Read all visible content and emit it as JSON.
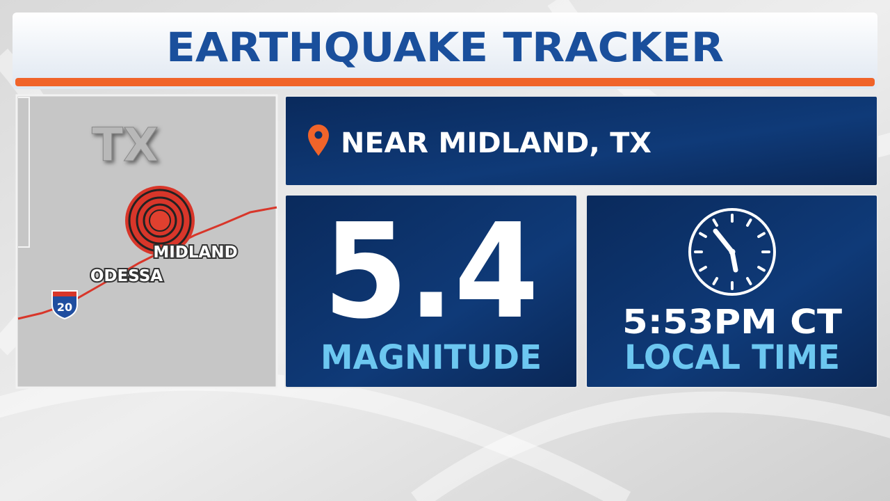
{
  "header": {
    "title": "EARTHQUAKE TRACKER"
  },
  "map": {
    "state": "TX",
    "cities": [
      "MIDLAND",
      "ODESSA"
    ],
    "highway": "20"
  },
  "location": "NEAR MIDLAND, TX",
  "magnitude": {
    "value": "5.4",
    "label": "MAGNITUDE"
  },
  "time": {
    "value": "5:53PM CT",
    "label": "LOCAL TIME"
  }
}
